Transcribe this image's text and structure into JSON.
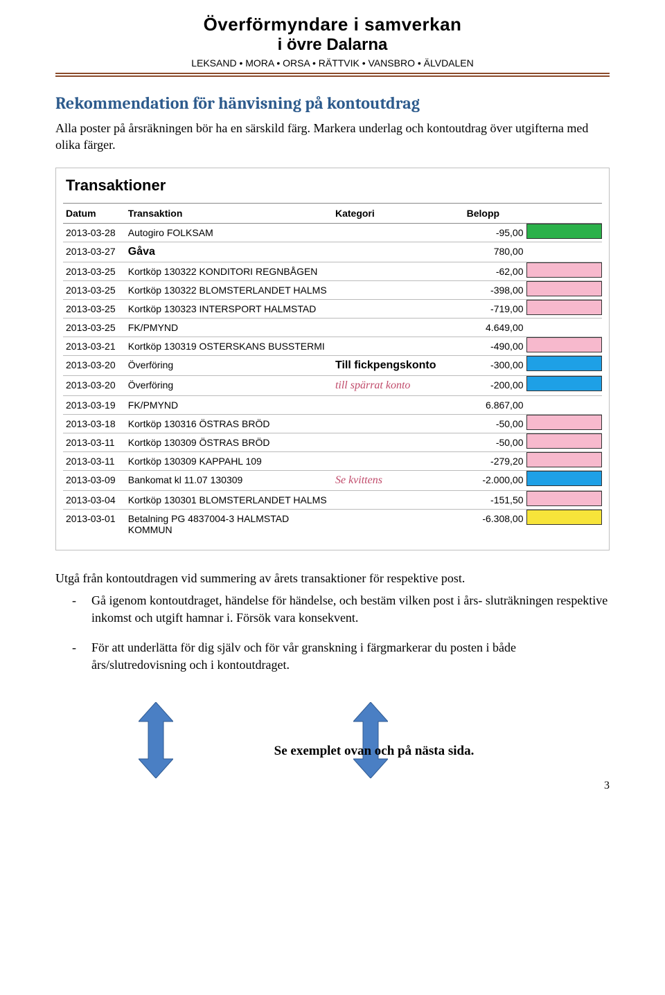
{
  "header": {
    "title1": "Överförmyndare i samverkan",
    "title2": "i övre Dalarna",
    "municipalities": "LEKSAND • MORA • ORSA • RÄTTVIK • VANSBRO • ÄLVDALEN"
  },
  "section": {
    "heading": "Rekommendation för hänvisning på kontoutdrag",
    "intro": "Alla poster på årsräkningen bör ha en särskild färg. Markera underlag och kontoutdrag över utgifterna med olika färger."
  },
  "statement": {
    "title": "Transaktioner",
    "columns": {
      "date": "Datum",
      "desc": "Transaktion",
      "cat": "Kategori",
      "amt": "Belopp"
    },
    "highlight_colors": {
      "green": "#2bb14a",
      "pink": "#f7b9cd",
      "blue": "#1ea0e6",
      "yellow": "#f7e43a",
      "none": ""
    },
    "rows": [
      {
        "date": "2013-03-28",
        "desc": "Autogiro FOLKSAM",
        "cat": "",
        "amt": "-95,00",
        "hl": "green"
      },
      {
        "date": "2013-03-27",
        "desc_class": "gava",
        "desc": "Gåva",
        "cat": "",
        "amt": "780,00",
        "hl": "none"
      },
      {
        "date": "2013-03-25",
        "desc": "Kortköp 130322 KONDITORI REGNBÅGEN",
        "cat": "",
        "amt": "-62,00",
        "hl": "pink"
      },
      {
        "date": "2013-03-25",
        "desc": "Kortköp 130322 BLOMSTERLANDET HALMS",
        "cat": "",
        "amt": "-398,00",
        "hl": "pink"
      },
      {
        "date": "2013-03-25",
        "desc": "Kortköp 130323 INTERSPORT HALMSTAD",
        "cat": "",
        "amt": "-719,00",
        "hl": "pink"
      },
      {
        "date": "2013-03-25",
        "desc": "FK/PMYND",
        "cat": "",
        "amt": "4.649,00",
        "hl": "none"
      },
      {
        "date": "2013-03-21",
        "desc": "Kortköp 130319 OSTERSKANS BUSSTERMI",
        "cat": "",
        "amt": "-490,00",
        "hl": "pink"
      },
      {
        "date": "2013-03-20",
        "desc": "Överföring",
        "cat": "Till fickpengskonto",
        "cat_class": "cat-note-bold",
        "amt": "-300,00",
        "hl": "blue"
      },
      {
        "date": "2013-03-20",
        "desc": "Överföring",
        "cat": "till spärrat konto",
        "cat_class": "cat-note",
        "amt": "-200,00",
        "hl": "blue"
      },
      {
        "date": "2013-03-19",
        "desc": "FK/PMYND",
        "cat": "",
        "amt": "6.867,00",
        "hl": "none"
      },
      {
        "date": "2013-03-18",
        "desc": "Kortköp 130316 ÖSTRAS BRÖD",
        "cat": "",
        "amt": "-50,00",
        "hl": "pink"
      },
      {
        "date": "2013-03-11",
        "desc": "Kortköp 130309 ÖSTRAS BRÖD",
        "cat": "",
        "amt": "-50,00",
        "hl": "pink"
      },
      {
        "date": "2013-03-11",
        "desc": "Kortköp 130309 KAPPAHL 109",
        "cat": "",
        "amt": "-279,20",
        "hl": "pink"
      },
      {
        "date": "2013-03-09",
        "desc": "Bankomat kl 11.07 130309",
        "cat": "Se kvittens",
        "cat_class": "cat-note",
        "amt": "-2.000,00",
        "hl": "blue"
      },
      {
        "date": "2013-03-04",
        "desc": "Kortköp 130301 BLOMSTERLANDET HALMS",
        "cat": "",
        "amt": "-151,50",
        "hl": "pink"
      },
      {
        "date": "2013-03-01",
        "desc": "Betalning PG 4837004-3 HALMSTAD KOMMUN",
        "cat": "",
        "amt": "-6.308,00",
        "hl": "yellow"
      }
    ]
  },
  "after_table": "Utgå från kontoutdragen vid summering av årets transaktioner för respektive post.",
  "bullets": [
    "Gå igenom kontoutdraget, händelse för händelse, och bestäm vilken post i års- sluträkningen respektive inkomst och utgift hamnar i. Försök vara konsekvent.",
    "För att underlätta för dig själv och för vår granskning i färgmarkerar du posten i både års/slutredovisning och i kontoutdraget."
  ],
  "see_example": "Se exemplet ovan och på nästa sida.",
  "arrow_color": "#4a7fc4",
  "page_number": "3"
}
